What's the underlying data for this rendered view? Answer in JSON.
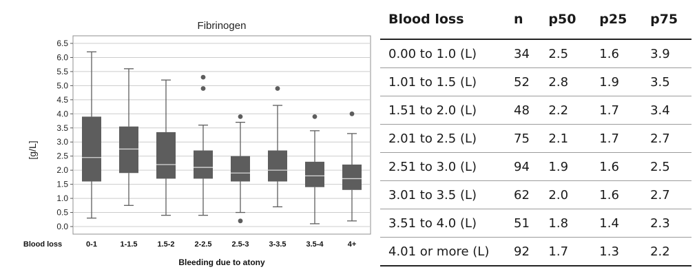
{
  "chart_data": {
    "type": "box",
    "title": "Fibrinogen",
    "ylabel": "[g/L]",
    "xlabel": "Bleeding due to atony",
    "category_axis_title": "Blood loss",
    "ylim": [
      0.0,
      6.5
    ],
    "yticks": [
      "0.0",
      "0.5",
      "1.0",
      "1.5",
      "2.0",
      "2.5",
      "3.0",
      "3.5",
      "4.0",
      "4.5",
      "5.0",
      "5.5",
      "6.0",
      "6.5"
    ],
    "grid": true,
    "categories": [
      "0-1",
      "1-1.5",
      "1.5-2",
      "2-2.5",
      "2.5-3",
      "3-3.5",
      "3.5-4",
      "4+"
    ],
    "boxes": [
      {
        "min": 0.3,
        "q1": 1.6,
        "median": 2.45,
        "q3": 3.9,
        "max": 6.2,
        "outliers": []
      },
      {
        "min": 0.75,
        "q1": 1.9,
        "median": 2.75,
        "q3": 3.55,
        "max": 5.6,
        "outliers": []
      },
      {
        "min": 0.4,
        "q1": 1.7,
        "median": 2.2,
        "q3": 3.35,
        "max": 5.2,
        "outliers": []
      },
      {
        "min": 0.4,
        "q1": 1.7,
        "median": 2.1,
        "q3": 2.7,
        "max": 3.6,
        "outliers": [
          4.9,
          5.3
        ]
      },
      {
        "min": 0.5,
        "q1": 1.6,
        "median": 1.9,
        "q3": 2.5,
        "max": 3.7,
        "outliers": [
          0.2,
          3.9
        ]
      },
      {
        "min": 0.7,
        "q1": 1.6,
        "median": 2.0,
        "q3": 2.7,
        "max": 4.3,
        "outliers": [
          4.9
        ]
      },
      {
        "min": 0.1,
        "q1": 1.4,
        "median": 1.8,
        "q3": 2.3,
        "max": 3.4,
        "outliers": [
          3.9
        ]
      },
      {
        "min": 0.2,
        "q1": 1.3,
        "median": 1.7,
        "q3": 2.2,
        "max": 3.3,
        "outliers": [
          4.0
        ]
      }
    ],
    "colors": {
      "box": "#5d5d5d",
      "median": "#d8d8d8",
      "whisker": "#5d5d5d",
      "grid": "#cccccc",
      "plot_frame": "#8f8f8f"
    }
  },
  "table": {
    "headers": [
      "Blood loss",
      "n",
      "p50",
      "p25",
      "p75"
    ],
    "rows": [
      [
        "0.00 to 1.0 (L)",
        "34",
        "2.5",
        "1.6",
        "3.9"
      ],
      [
        "1.01 to 1.5 (L)",
        "52",
        "2.8",
        "1.9",
        "3.5"
      ],
      [
        "1.51 to 2.0 (L)",
        "48",
        "2.2",
        "1.7",
        "3.4"
      ],
      [
        "2.01 to 2.5 (L)",
        "75",
        "2.1",
        "1.7",
        "2.7"
      ],
      [
        "2.51 to 3.0 (L)",
        "94",
        "1.9",
        "1.6",
        "2.5"
      ],
      [
        "3.01 to 3.5 (L)",
        "62",
        "2.0",
        "1.6",
        "2.7"
      ],
      [
        "3.51 to 4.0 (L)",
        "51",
        "1.8",
        "1.4",
        "2.3"
      ],
      [
        "4.01 or more (L)",
        "92",
        "1.7",
        "1.3",
        "2.2"
      ]
    ]
  }
}
